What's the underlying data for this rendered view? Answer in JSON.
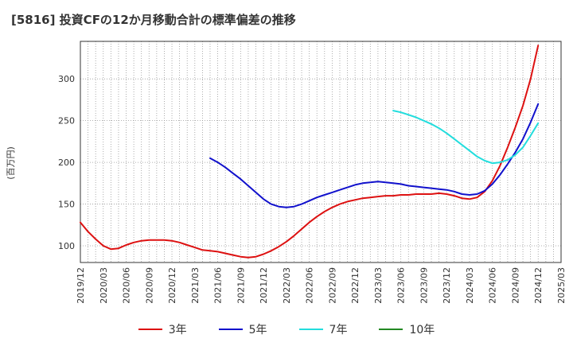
{
  "chart_data": {
    "type": "line",
    "title": "[5816]  投資CFの12か月移動合計の標準偏差の推移",
    "ylabel": "(百万円)",
    "xlabel": "",
    "ylim": [
      80,
      345
    ],
    "yticks": [
      100,
      150,
      200,
      250,
      300
    ],
    "xticks": [
      "2019/12",
      "2020/03",
      "2020/06",
      "2020/09",
      "2020/12",
      "2021/03",
      "2021/06",
      "2021/09",
      "2021/12",
      "2022/03",
      "2022/06",
      "2022/09",
      "2022/12",
      "2023/03",
      "2023/06",
      "2023/09",
      "2023/12",
      "2024/03",
      "2024/06",
      "2024/09",
      "2024/12",
      "2025/03"
    ],
    "grid": true,
    "legend_position": "bottom",
    "series": [
      {
        "name": "3年",
        "color": "#dd1111",
        "points": [
          [
            "2019/12",
            128
          ],
          [
            "2020/01",
            117
          ],
          [
            "2020/02",
            108
          ],
          [
            "2020/03",
            100
          ],
          [
            "2020/04",
            96
          ],
          [
            "2020/05",
            97
          ],
          [
            "2020/06",
            101
          ],
          [
            "2020/07",
            104
          ],
          [
            "2020/08",
            106
          ],
          [
            "2020/09",
            107
          ],
          [
            "2020/10",
            107
          ],
          [
            "2020/11",
            107
          ],
          [
            "2020/12",
            106
          ],
          [
            "2021/01",
            104
          ],
          [
            "2021/02",
            101
          ],
          [
            "2021/03",
            98
          ],
          [
            "2021/04",
            95
          ],
          [
            "2021/05",
            94
          ],
          [
            "2021/06",
            93
          ],
          [
            "2021/07",
            91
          ],
          [
            "2021/08",
            89
          ],
          [
            "2021/09",
            87
          ],
          [
            "2021/10",
            86
          ],
          [
            "2021/11",
            87
          ],
          [
            "2021/12",
            90
          ],
          [
            "2022/01",
            94
          ],
          [
            "2022/02",
            99
          ],
          [
            "2022/03",
            105
          ],
          [
            "2022/04",
            112
          ],
          [
            "2022/05",
            120
          ],
          [
            "2022/06",
            128
          ],
          [
            "2022/07",
            135
          ],
          [
            "2022/08",
            141
          ],
          [
            "2022/09",
            146
          ],
          [
            "2022/10",
            150
          ],
          [
            "2022/11",
            153
          ],
          [
            "2022/12",
            155
          ],
          [
            "2023/01",
            157
          ],
          [
            "2023/02",
            158
          ],
          [
            "2023/03",
            159
          ],
          [
            "2023/04",
            160
          ],
          [
            "2023/05",
            160
          ],
          [
            "2023/06",
            161
          ],
          [
            "2023/07",
            161
          ],
          [
            "2023/08",
            162
          ],
          [
            "2023/09",
            162
          ],
          [
            "2023/10",
            162
          ],
          [
            "2023/11",
            163
          ],
          [
            "2023/12",
            162
          ],
          [
            "2024/01",
            160
          ],
          [
            "2024/02",
            157
          ],
          [
            "2024/03",
            156
          ],
          [
            "2024/04",
            158
          ],
          [
            "2024/05",
            165
          ],
          [
            "2024/06",
            178
          ],
          [
            "2024/07",
            196
          ],
          [
            "2024/08",
            218
          ],
          [
            "2024/09",
            242
          ],
          [
            "2024/10",
            268
          ],
          [
            "2024/11",
            300
          ],
          [
            "2024/12",
            340
          ]
        ]
      },
      {
        "name": "5年",
        "color": "#1111cc",
        "points": [
          [
            "2021/05",
            205
          ],
          [
            "2021/06",
            200
          ],
          [
            "2021/07",
            194
          ],
          [
            "2021/08",
            187
          ],
          [
            "2021/09",
            180
          ],
          [
            "2021/10",
            172
          ],
          [
            "2021/11",
            164
          ],
          [
            "2021/12",
            156
          ],
          [
            "2022/01",
            150
          ],
          [
            "2022/02",
            147
          ],
          [
            "2022/03",
            146
          ],
          [
            "2022/04",
            147
          ],
          [
            "2022/05",
            150
          ],
          [
            "2022/06",
            154
          ],
          [
            "2022/07",
            158
          ],
          [
            "2022/08",
            161
          ],
          [
            "2022/09",
            164
          ],
          [
            "2022/10",
            167
          ],
          [
            "2022/11",
            170
          ],
          [
            "2022/12",
            173
          ],
          [
            "2023/01",
            175
          ],
          [
            "2023/02",
            176
          ],
          [
            "2023/03",
            177
          ],
          [
            "2023/04",
            176
          ],
          [
            "2023/05",
            175
          ],
          [
            "2023/06",
            174
          ],
          [
            "2023/07",
            172
          ],
          [
            "2023/08",
            171
          ],
          [
            "2023/09",
            170
          ],
          [
            "2023/10",
            169
          ],
          [
            "2023/11",
            168
          ],
          [
            "2023/12",
            167
          ],
          [
            "2024/01",
            165
          ],
          [
            "2024/02",
            162
          ],
          [
            "2024/03",
            161
          ],
          [
            "2024/04",
            162
          ],
          [
            "2024/05",
            166
          ],
          [
            "2024/06",
            174
          ],
          [
            "2024/07",
            185
          ],
          [
            "2024/08",
            198
          ],
          [
            "2024/09",
            212
          ],
          [
            "2024/10",
            228
          ],
          [
            "2024/11",
            248
          ],
          [
            "2024/12",
            270
          ]
        ]
      },
      {
        "name": "7年",
        "color": "#22dddd",
        "points": [
          [
            "2023/05",
            262
          ],
          [
            "2023/06",
            260
          ],
          [
            "2023/07",
            257
          ],
          [
            "2023/08",
            254
          ],
          [
            "2023/09",
            250
          ],
          [
            "2023/10",
            246
          ],
          [
            "2023/11",
            241
          ],
          [
            "2023/12",
            235
          ],
          [
            "2024/01",
            228
          ],
          [
            "2024/02",
            221
          ],
          [
            "2024/03",
            214
          ],
          [
            "2024/04",
            207
          ],
          [
            "2024/05",
            202
          ],
          [
            "2024/06",
            199
          ],
          [
            "2024/07",
            200
          ],
          [
            "2024/08",
            203
          ],
          [
            "2024/09",
            209
          ],
          [
            "2024/10",
            218
          ],
          [
            "2024/11",
            232
          ],
          [
            "2024/12",
            247
          ]
        ]
      },
      {
        "name": "10年",
        "color": "#228822",
        "points": []
      }
    ]
  }
}
